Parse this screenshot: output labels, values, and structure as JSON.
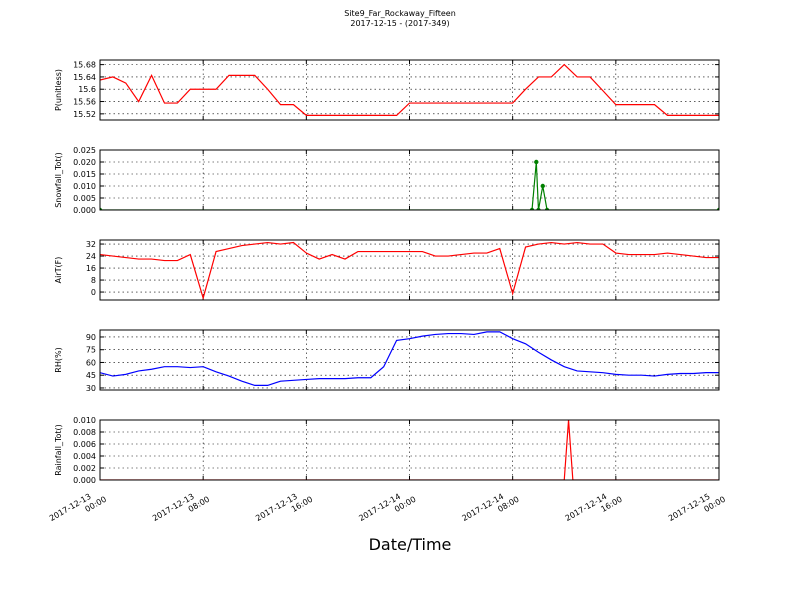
{
  "title": "Site9_Far_Rockaway_Fifteen",
  "subtitle": "2017-12-15 - (2017-349)",
  "xlabel": "Date/Time",
  "xlim": [
    "2017-12-13 00:00",
    "2017-12-15 00:00"
  ],
  "xticks": [
    "2017-12-13 00:00",
    "2017-12-13 08:00",
    "2017-12-13 16:00",
    "2017-12-14 00:00",
    "2017-12-14 08:00",
    "2017-12-14 16:00",
    "2017-12-15 00:00"
  ],
  "chart_data": [
    {
      "type": "line",
      "ylabel": "P(unitless)",
      "ylim": [
        15.5,
        15.695
      ],
      "yticks": [
        15.52,
        15.56,
        15.6,
        15.64,
        15.68
      ],
      "grid": true,
      "series": [
        {
          "color": "#ff0000",
          "x": [
            "2017-12-13 00:00",
            "2017-12-13 01:00",
            "2017-12-13 02:00",
            "2017-12-13 03:00",
            "2017-12-13 04:00",
            "2017-12-13 05:00",
            "2017-12-13 06:00",
            "2017-12-13 07:00",
            "2017-12-13 08:00",
            "2017-12-13 09:00",
            "2017-12-13 10:00",
            "2017-12-13 11:00",
            "2017-12-13 12:00",
            "2017-12-13 13:00",
            "2017-12-13 14:00",
            "2017-12-13 15:00",
            "2017-12-13 16:00",
            "2017-12-13 17:00",
            "2017-12-13 18:00",
            "2017-12-13 19:00",
            "2017-12-13 20:00",
            "2017-12-13 21:00",
            "2017-12-13 22:00",
            "2017-12-13 23:00",
            "2017-12-14 00:00",
            "2017-12-14 01:00",
            "2017-12-14 02:00",
            "2017-12-14 03:00",
            "2017-12-14 04:00",
            "2017-12-14 05:00",
            "2017-12-14 06:00",
            "2017-12-14 07:00",
            "2017-12-14 08:00",
            "2017-12-14 09:00",
            "2017-12-14 10:00",
            "2017-12-14 11:00",
            "2017-12-14 12:00",
            "2017-12-14 13:00",
            "2017-12-14 14:00",
            "2017-12-14 15:00",
            "2017-12-14 16:00",
            "2017-12-14 17:00",
            "2017-12-14 18:00",
            "2017-12-14 19:00",
            "2017-12-14 20:00",
            "2017-12-14 21:00",
            "2017-12-14 22:00",
            "2017-12-14 23:00",
            "2017-12-15 00:00"
          ],
          "values": [
            15.63,
            15.64,
            15.62,
            15.56,
            15.645,
            15.555,
            15.555,
            15.6,
            15.6,
            15.6,
            15.645,
            15.645,
            15.645,
            15.6,
            15.55,
            15.55,
            15.515,
            15.515,
            15.515,
            15.515,
            15.515,
            15.515,
            15.515,
            15.515,
            15.555,
            15.555,
            15.555,
            15.555,
            15.555,
            15.555,
            15.555,
            15.555,
            15.555,
            15.6,
            15.64,
            15.64,
            15.68,
            15.64,
            15.64,
            15.595,
            15.55,
            15.55,
            15.55,
            15.55,
            15.515,
            15.515,
            15.515,
            15.515,
            15.515
          ]
        }
      ]
    },
    {
      "type": "line",
      "ylabel": "Snowfall_Tot()",
      "ylim": [
        0,
        0.025
      ],
      "yticks": [
        {
          "value": 0,
          "label": "0.000"
        },
        {
          "value": 0.005,
          "label": "0.005"
        },
        {
          "value": 0.01,
          "label": "0.010"
        },
        {
          "value": 0.015,
          "label": "0.015"
        },
        {
          "value": 0.02,
          "label": "0.020"
        },
        {
          "value": 0.025,
          "label": "0.025"
        }
      ],
      "grid": true,
      "markers": true,
      "series": [
        {
          "color": "#008000",
          "x": [
            "2017-12-13 00:00",
            "2017-12-14 09:30",
            "2017-12-14 09:50",
            "2017-12-14 10:00",
            "2017-12-14 10:20",
            "2017-12-14 10:40",
            "2017-12-15 00:00"
          ],
          "values": [
            0,
            0,
            0.02,
            0,
            0.01,
            0,
            0
          ]
        }
      ]
    },
    {
      "type": "line",
      "ylabel": "AirT(F)",
      "ylim": [
        -5.3,
        34.7
      ],
      "yticks": [
        0,
        8,
        16,
        24,
        32
      ],
      "grid": true,
      "series": [
        {
          "color": "#ff0000",
          "x": [
            "2017-12-13 00:00",
            "2017-12-13 01:00",
            "2017-12-13 02:00",
            "2017-12-13 03:00",
            "2017-12-13 04:00",
            "2017-12-13 05:00",
            "2017-12-13 06:00",
            "2017-12-13 07:00",
            "2017-12-13 08:00",
            "2017-12-13 09:00",
            "2017-12-13 10:00",
            "2017-12-13 11:00",
            "2017-12-13 12:00",
            "2017-12-13 13:00",
            "2017-12-13 14:00",
            "2017-12-13 15:00",
            "2017-12-13 16:00",
            "2017-12-13 17:00",
            "2017-12-13 18:00",
            "2017-12-13 19:00",
            "2017-12-13 20:00",
            "2017-12-13 21:00",
            "2017-12-13 22:00",
            "2017-12-13 23:00",
            "2017-12-14 00:00",
            "2017-12-14 01:00",
            "2017-12-14 02:00",
            "2017-12-14 03:00",
            "2017-12-14 04:00",
            "2017-12-14 05:00",
            "2017-12-14 06:00",
            "2017-12-14 07:00",
            "2017-12-14 08:00",
            "2017-12-14 09:00",
            "2017-12-14 10:00",
            "2017-12-14 11:00",
            "2017-12-14 12:00",
            "2017-12-14 13:00",
            "2017-12-14 14:00",
            "2017-12-14 15:00",
            "2017-12-14 16:00",
            "2017-12-14 17:00",
            "2017-12-14 18:00",
            "2017-12-14 19:00",
            "2017-12-14 20:00",
            "2017-12-14 21:00",
            "2017-12-14 22:00",
            "2017-12-14 23:00",
            "2017-12-15 00:00"
          ],
          "values": [
            25,
            24,
            23,
            22,
            22,
            21,
            21,
            25,
            -4,
            27,
            29,
            31,
            32,
            33,
            32,
            33,
            26,
            22,
            25,
            22,
            27,
            27,
            27,
            27,
            27,
            27,
            24,
            24,
            25,
            26,
            26,
            29,
            -1,
            30,
            32,
            33,
            32,
            33,
            32,
            32,
            26,
            25,
            25,
            25,
            26,
            25,
            24,
            23,
            23
          ]
        }
      ]
    },
    {
      "type": "line",
      "ylabel": "RH(%)",
      "ylim": [
        27.6,
        98.2
      ],
      "yticks": [
        30,
        45,
        60,
        75,
        90
      ],
      "grid": true,
      "series": [
        {
          "color": "#0000ff",
          "x": [
            "2017-12-13 00:00",
            "2017-12-13 01:00",
            "2017-12-13 02:00",
            "2017-12-13 03:00",
            "2017-12-13 04:00",
            "2017-12-13 05:00",
            "2017-12-13 06:00",
            "2017-12-13 07:00",
            "2017-12-13 08:00",
            "2017-12-13 09:00",
            "2017-12-13 10:00",
            "2017-12-13 11:00",
            "2017-12-13 12:00",
            "2017-12-13 13:00",
            "2017-12-13 14:00",
            "2017-12-13 15:00",
            "2017-12-13 16:00",
            "2017-12-13 17:00",
            "2017-12-13 18:00",
            "2017-12-13 19:00",
            "2017-12-13 20:00",
            "2017-12-13 21:00",
            "2017-12-13 22:00",
            "2017-12-13 23:00",
            "2017-12-14 00:00",
            "2017-12-14 01:00",
            "2017-12-14 02:00",
            "2017-12-14 03:00",
            "2017-12-14 04:00",
            "2017-12-14 05:00",
            "2017-12-14 06:00",
            "2017-12-14 07:00",
            "2017-12-14 08:00",
            "2017-12-14 09:00",
            "2017-12-14 10:00",
            "2017-12-14 11:00",
            "2017-12-14 12:00",
            "2017-12-14 13:00",
            "2017-12-14 14:00",
            "2017-12-14 15:00",
            "2017-12-14 16:00",
            "2017-12-14 17:00",
            "2017-12-14 18:00",
            "2017-12-14 19:00",
            "2017-12-14 20:00",
            "2017-12-14 21:00",
            "2017-12-14 22:00",
            "2017-12-14 23:00",
            "2017-12-15 00:00"
          ],
          "values": [
            48,
            44,
            46,
            50,
            52,
            55,
            55,
            54,
            55,
            49,
            44,
            38,
            33,
            33,
            38,
            39,
            40,
            41,
            41,
            41,
            42,
            42,
            55,
            86,
            88,
            91,
            93,
            94,
            94,
            93,
            96,
            96,
            88,
            82,
            72,
            63,
            55,
            50,
            49,
            48,
            46,
            45,
            45,
            44,
            46,
            47,
            47,
            48,
            48
          ]
        }
      ]
    },
    {
      "type": "line",
      "ylabel": "Rainfall_Tot()",
      "ylim": [
        0,
        0.01
      ],
      "yticks": [
        {
          "value": 0,
          "label": "0.000"
        },
        {
          "value": 0.002,
          "label": "0.002"
        },
        {
          "value": 0.004,
          "label": "0.004"
        },
        {
          "value": 0.006,
          "label": "0.006"
        },
        {
          "value": 0.008,
          "label": "0.008"
        },
        {
          "value": 0.01,
          "label": "0.010"
        }
      ],
      "grid": true,
      "series": [
        {
          "color": "#ff0000",
          "x": [
            "2017-12-13 00:00",
            "2017-12-14 12:00",
            "2017-12-14 12:20",
            "2017-12-14 12:40",
            "2017-12-15 00:00"
          ],
          "values": [
            0,
            0,
            0.01,
            0,
            0
          ]
        }
      ]
    }
  ]
}
